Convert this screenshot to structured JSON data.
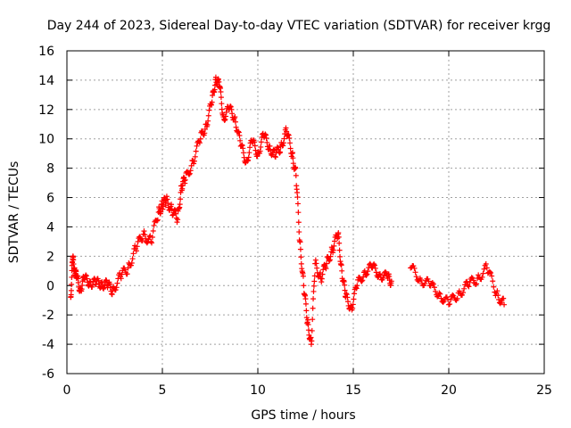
{
  "chart_data": {
    "type": "scatter",
    "title": "Day 244 of 2023, Sidereal Day-to-day VTEC variation (SDTVAR) for receiver krgg",
    "xlabel": "GPS time / hours",
    "ylabel": "SDTVAR / TECUs",
    "xlim": [
      0,
      25
    ],
    "ylim": [
      -6,
      16
    ],
    "xticks": [
      0,
      5,
      10,
      15,
      20,
      25
    ],
    "yticks": [
      -6,
      -4,
      -2,
      0,
      2,
      4,
      6,
      8,
      10,
      12,
      14,
      16
    ],
    "grid": true,
    "marker": "+",
    "colors": {
      "series": "#ff0000",
      "grid": "#a0a0a0",
      "axes": "#000000"
    },
    "series": [
      {
        "name": "SDTVAR",
        "x": [
          0.2,
          0.3,
          0.4,
          0.5,
          0.7,
          0.9,
          1.2,
          1.5,
          1.8,
          2.1,
          2.4,
          2.8,
          3.2,
          3.6,
          4.0,
          4.4,
          4.8,
          5.0,
          5.2,
          5.5,
          5.8,
          6.0,
          6.2,
          6.6,
          7.0,
          7.3,
          7.6,
          7.8,
          8.0,
          8.2,
          8.5,
          8.8,
          9.1,
          9.4,
          9.7,
          10.0,
          10.3,
          10.6,
          10.9,
          11.2,
          11.5,
          11.8,
          12.0,
          12.2,
          12.4,
          12.6,
          12.8,
          13.0,
          13.3,
          13.6,
          13.9,
          14.2,
          14.4,
          14.6,
          14.9,
          15.2,
          15.6,
          16.0,
          16.4,
          16.8,
          17.0,
          18.0,
          18.5,
          19.0,
          19.5,
          20.0,
          20.5,
          21.0,
          21.5,
          22.0,
          22.5,
          22.9
        ],
        "y": [
          -0.8,
          1.8,
          1.2,
          0.5,
          -0.2,
          0.4,
          0.3,
          0.1,
          0.2,
          0.0,
          -0.3,
          0.6,
          1.2,
          2.5,
          3.5,
          3.0,
          5.0,
          5.5,
          5.8,
          5.2,
          4.5,
          6.8,
          7.2,
          8.5,
          10.0,
          11.0,
          12.5,
          14.2,
          13.5,
          11.5,
          12.0,
          11.5,
          9.5,
          8.5,
          9.8,
          9.0,
          10.2,
          9.5,
          8.8,
          9.5,
          10.5,
          9.0,
          7.5,
          3.0,
          0.0,
          -2.5,
          -4.0,
          1.5,
          0.5,
          1.5,
          2.5,
          3.5,
          1.0,
          -0.8,
          -1.5,
          0.0,
          1.0,
          1.2,
          0.8,
          0.5,
          0.3,
          1.2,
          0.5,
          0.0,
          -0.5,
          -1.3,
          -0.5,
          0.0,
          0.5,
          1.2,
          -0.5,
          -1.3
        ]
      }
    ]
  }
}
